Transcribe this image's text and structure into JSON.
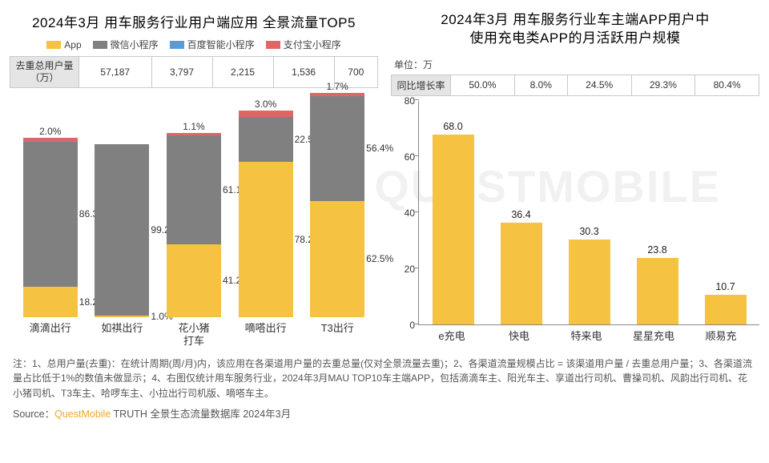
{
  "colors": {
    "app": "#f5c242",
    "wechat": "#808080",
    "baidu": "#5b9bd5",
    "alipay": "#e06666",
    "bar": "#f5c242",
    "grid": "#888888",
    "table_header_bg": "#e5e5e5",
    "table_border": "#c9c9c9",
    "text": "#333333",
    "background": "#ffffff"
  },
  "left": {
    "title": "2024年3月 用车服务行业用户端应用 全景流量TOP5",
    "legend": [
      {
        "label": "App",
        "colorKey": "app"
      },
      {
        "label": "微信小程序",
        "colorKey": "wechat"
      },
      {
        "label": "百度智能小程序",
        "colorKey": "baidu"
      },
      {
        "label": "支付宝小程序",
        "colorKey": "alipay"
      }
    ],
    "table": {
      "row_label": "去重总用户量（万）",
      "values": [
        "57,187",
        "3,797",
        "2,215",
        "1,536",
        "700"
      ]
    },
    "categories": [
      "滴滴出行",
      "如祺出行",
      "花小猪\n打车",
      "嘀嗒出行",
      "T3出行"
    ],
    "chart": {
      "type": "stacked-bar",
      "heights_pct": [
        80,
        77,
        82,
        92,
        100
      ],
      "stacks": [
        [
          {
            "k": "app",
            "v": 18.2,
            "show": true
          },
          {
            "k": "wechat",
            "v": 86.3,
            "show": true
          },
          {
            "k": "baidu",
            "v": 0.4,
            "show": false
          },
          {
            "k": "alipay",
            "v": 2.0,
            "show": true
          }
        ],
        [
          {
            "k": "app",
            "v": 1.0,
            "show": true
          },
          {
            "k": "wechat",
            "v": 99.2,
            "show": true
          }
        ],
        [
          {
            "k": "app",
            "v": 41.2,
            "show": true
          },
          {
            "k": "wechat",
            "v": 61.1,
            "show": true
          },
          {
            "k": "alipay",
            "v": 1.1,
            "show": true
          }
        ],
        [
          {
            "k": "app",
            "v": 78.2,
            "show": true
          },
          {
            "k": "wechat",
            "v": 22.5,
            "show": true
          },
          {
            "k": "alipay",
            "v": 3.0,
            "show": true
          }
        ],
        [
          {
            "k": "app",
            "v": 62.5,
            "show": true
          },
          {
            "k": "wechat",
            "v": 56.4,
            "show": true
          },
          {
            "k": "alipay",
            "v": 1.7,
            "show": true
          }
        ]
      ]
    }
  },
  "right": {
    "title_l1": "2024年3月 用车服务行业车主端APP用户中",
    "title_l2": "使用充电类APP的月活跃用户规模",
    "unit": "单位：万",
    "table": {
      "row_label": "同比增长率",
      "values": [
        "50.0%",
        "8.0%",
        "24.5%",
        "29.3%",
        "80.4%"
      ]
    },
    "categories": [
      "e充电",
      "快电",
      "特来电",
      "星星充电",
      "顺易充"
    ],
    "chart": {
      "type": "bar",
      "ymax": 80,
      "ytick_step": 20,
      "values": [
        68.0,
        36.4,
        30.3,
        23.8,
        10.7
      ]
    }
  },
  "footer": "注：1、总用户量(去重)：在统计周期(周/月)内，该应用在各渠道用户量的去重总量(仅对全景流量去重)；2、各渠道流量规模占比 = 该渠道用户量 / 去重总用户量；3、各渠道流量占比低于1%的数值未做显示；4、右图仅统计用车服务行业，2024年3月MAU TOP10车主端APP，包括滴滴车主、阳光车主、享道出行司机、曹操司机、风韵出行司机、花小猪司机、T3车主、哈啰车主、小拉出行司机版、嘀嗒车主。",
  "source_prefix": "Source：",
  "source_brand": "QuestMobile",
  "source_suffix": "TRUTH 全景生态流量数据库 2024年3月",
  "watermark": "QUESTMOBILE"
}
